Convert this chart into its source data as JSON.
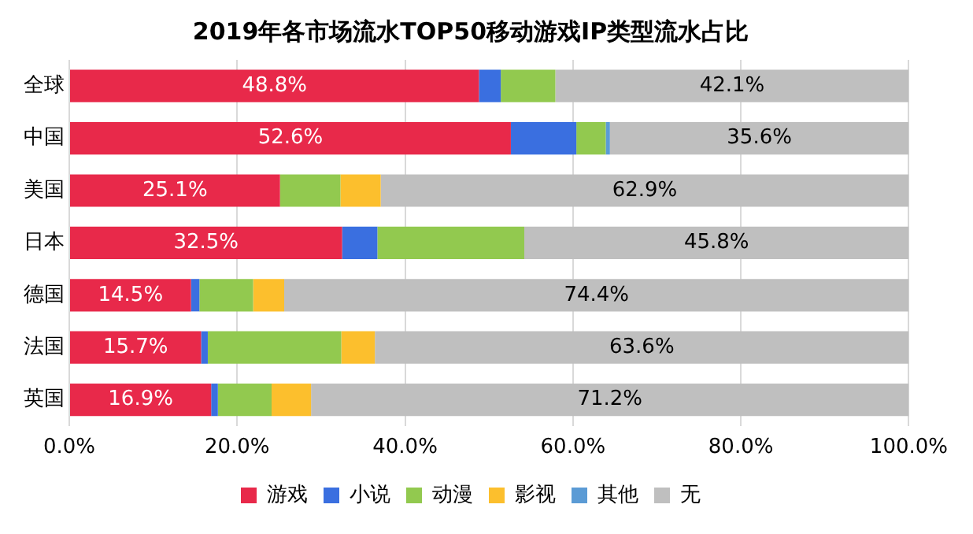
{
  "chart_data": {
    "type": "bar",
    "orientation": "horizontal",
    "stacked": true,
    "title": "2019年各市场流水TOP50移动游戏IP类型流水占比",
    "categories": [
      "全球",
      "中国",
      "美国",
      "日本",
      "德国",
      "法国",
      "英国"
    ],
    "series": [
      {
        "name": "游戏",
        "color": "#e8294a",
        "values": [
          48.8,
          52.6,
          25.1,
          32.5,
          14.5,
          15.7,
          16.9
        ],
        "value_labels": [
          "48.8%",
          "52.6%",
          "25.1%",
          "32.5%",
          "14.5%",
          "15.7%",
          "16.9%"
        ]
      },
      {
        "name": "小说",
        "color": "#3a6fe0",
        "values": [
          2.6,
          7.8,
          null,
          4.2,
          1.0,
          0.8,
          0.8
        ]
      },
      {
        "name": "动漫",
        "color": "#92c94f",
        "values": [
          6.5,
          3.5,
          7.2,
          17.5,
          6.4,
          15.9,
          6.4
        ]
      },
      {
        "name": "影视",
        "color": "#fcbf2d",
        "values": [
          null,
          null,
          4.8,
          null,
          3.7,
          4.0,
          4.7
        ]
      },
      {
        "name": "其他",
        "color": "#5b9bd5",
        "values": [
          null,
          0.5,
          null,
          null,
          null,
          null,
          null
        ]
      },
      {
        "name": "无",
        "color": "#bfbfbf",
        "values": [
          42.1,
          35.6,
          62.9,
          45.8,
          74.4,
          63.6,
          71.2
        ],
        "value_labels": [
          "42.1%",
          "35.6%",
          "62.9%",
          "45.8%",
          "74.4%",
          "63.6%",
          "71.2%"
        ]
      }
    ],
    "xlim": [
      0,
      100
    ],
    "xticks": [
      {
        "value": 0,
        "label": "0.0%"
      },
      {
        "value": 20,
        "label": "20.0%"
      },
      {
        "value": 40,
        "label": "40.0%"
      },
      {
        "value": 60,
        "label": "60.0%"
      },
      {
        "value": 80,
        "label": "80.0%"
      },
      {
        "value": 100,
        "label": "100.0%"
      }
    ],
    "grid": "x",
    "legend": "bottom"
  }
}
